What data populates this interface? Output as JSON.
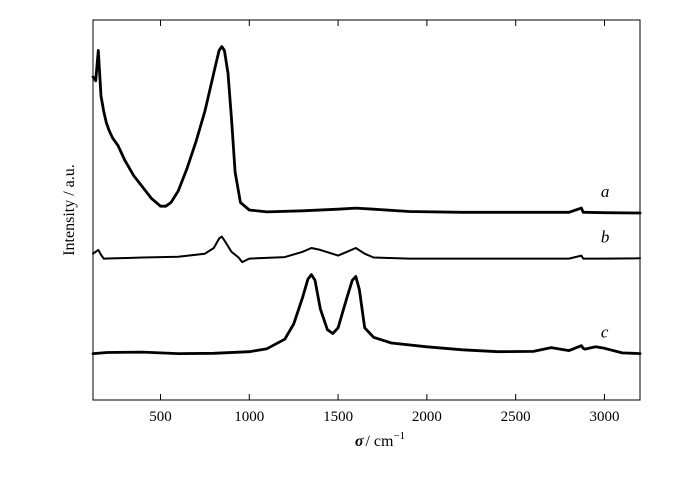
{
  "chart_data": {
    "type": "line",
    "xlabel_symbol": "σ",
    "xlabel_unit": "/ cm",
    "xlabel_exponent": "−1",
    "ylabel": "Intensity / a.u.",
    "xlim": [
      120,
      3200
    ],
    "ylim": [
      0,
      100
    ],
    "x_ticks": [
      500,
      1000,
      1500,
      2000,
      2500,
      3000
    ],
    "x_tick_labels": [
      "500",
      "1000",
      "1500",
      "2000",
      "2500",
      "3000"
    ],
    "grid": false,
    "legend": "none",
    "series": [
      {
        "name": "a",
        "x": [
          120,
          135,
          150,
          165,
          180,
          195,
          210,
          230,
          260,
          300,
          350,
          400,
          450,
          500,
          530,
          560,
          600,
          650,
          700,
          750,
          780,
          810,
          830,
          845,
          860,
          880,
          900,
          920,
          950,
          1000,
          1100,
          1300,
          1500,
          1600,
          1700,
          1900,
          2200,
          2500,
          2800,
          2870,
          2880,
          2890,
          3000,
          3200
        ],
        "y": [
          85,
          84,
          92,
          80,
          76,
          73,
          71,
          69,
          67,
          63,
          59,
          56,
          53,
          51,
          51,
          52,
          55,
          61,
          68,
          76,
          82,
          88,
          92,
          93,
          92,
          86,
          74,
          60,
          52,
          50,
          49.5,
          49.8,
          50.2,
          50.5,
          50.2,
          49.6,
          49.4,
          49.4,
          49.4,
          50.5,
          49.4,
          49.4,
          49.3,
          49.2
        ],
        "label_x": 2980
      },
      {
        "name": "b",
        "x": [
          120,
          150,
          165,
          180,
          250,
          400,
          600,
          750,
          800,
          830,
          845,
          860,
          900,
          940,
          960,
          1000,
          1200,
          1300,
          1350,
          1400,
          1500,
          1550,
          1600,
          1650,
          1700,
          1900,
          2200,
          2500,
          2800,
          2870,
          2880,
          2890,
          3000,
          3200
        ],
        "y": [
          38.5,
          39.5,
          38.2,
          37.2,
          37.3,
          37.5,
          37.7,
          38.5,
          40,
          42.5,
          43,
          42,
          39,
          37.5,
          36.3,
          37.2,
          37.6,
          39,
          40,
          39.5,
          38,
          39,
          40,
          38.5,
          37.5,
          37.2,
          37.2,
          37.2,
          37.2,
          38,
          37.2,
          37.2,
          37.2,
          37.3
        ],
        "label_x": 2980
      },
      {
        "name": "c",
        "x": [
          120,
          200,
          400,
          600,
          800,
          1000,
          1100,
          1200,
          1250,
          1300,
          1330,
          1350,
          1370,
          1400,
          1440,
          1470,
          1500,
          1550,
          1580,
          1600,
          1620,
          1650,
          1700,
          1800,
          2000,
          2200,
          2400,
          2600,
          2700,
          2800,
          2870,
          2880,
          2890,
          2950,
          3000,
          3100,
          3200
        ],
        "y": [
          12.2,
          12.5,
          12.6,
          12.2,
          12.3,
          12.7,
          13.5,
          16,
          20,
          27,
          31.8,
          33,
          31.5,
          24,
          18.5,
          17.5,
          19,
          27,
          31.5,
          32.5,
          29,
          19,
          16.5,
          15,
          14,
          13.2,
          12.7,
          12.8,
          13.8,
          13,
          14.3,
          13.6,
          13.4,
          14,
          13.6,
          12.4,
          12.2
        ],
        "label_x": 2980
      }
    ]
  }
}
